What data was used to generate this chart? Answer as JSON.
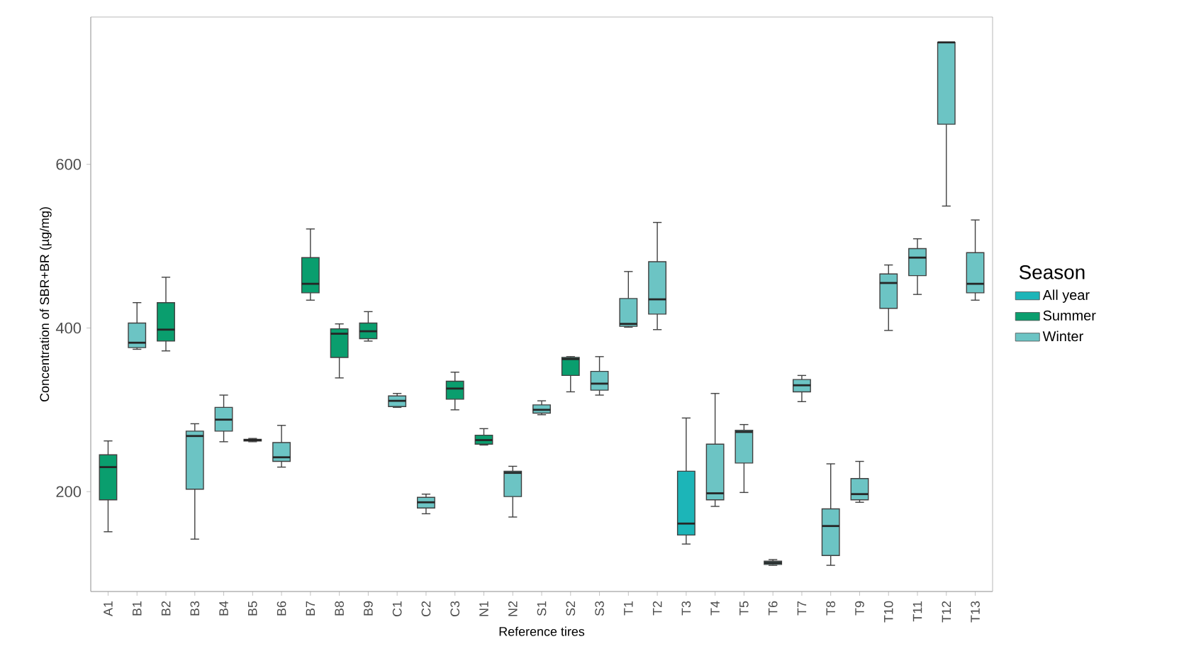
{
  "chart_data": {
    "type": "box",
    "xlabel": "Reference tires",
    "ylabel": "Concentration of SBR+BR (µg/mg)",
    "legend_title": "Season",
    "legend": "right",
    "categories": [
      "A1",
      "B1",
      "B2",
      "B3",
      "B4",
      "B5",
      "B6",
      "B7",
      "B8",
      "B9",
      "C1",
      "C2",
      "C3",
      "N1",
      "N2",
      "S1",
      "S2",
      "S3",
      "T1",
      "T2",
      "T3",
      "T4",
      "T5",
      "T6",
      "T7",
      "T8",
      "T9",
      "T10",
      "T11",
      "T12",
      "T13"
    ],
    "ylim": [
      78,
      780
    ],
    "yticks": [
      200,
      400,
      600
    ],
    "series": [
      {
        "name": "All year",
        "color": "#1cb5b8",
        "boxes": [
          null,
          null,
          null,
          null,
          null,
          null,
          null,
          null,
          null,
          null,
          null,
          null,
          null,
          null,
          null,
          null,
          null,
          null,
          null,
          null,
          {
            "low": 136,
            "q1": 147,
            "median": 161,
            "q3": 225,
            "high": 290
          },
          null,
          null,
          null,
          null,
          null,
          null,
          null,
          null,
          null,
          null
        ]
      },
      {
        "name": "Summer",
        "color": "#0a9e6e",
        "boxes": [
          {
            "low": 151,
            "q1": 190,
            "median": 230,
            "q3": 245,
            "high": 262
          },
          null,
          {
            "low": 372,
            "q1": 384,
            "median": 398,
            "q3": 431,
            "high": 462
          },
          null,
          null,
          {
            "low": 261,
            "q1": 262,
            "median": 263,
            "q3": 264,
            "high": 265
          },
          null,
          {
            "low": 434,
            "q1": 443,
            "median": 454,
            "q3": 486,
            "high": 521
          },
          {
            "low": 339,
            "q1": 364,
            "median": 393,
            "q3": 399,
            "high": 405
          },
          {
            "low": 384,
            "q1": 387,
            "median": 396,
            "q3": 406,
            "high": 420
          },
          null,
          null,
          {
            "low": 300,
            "q1": 313,
            "median": 326,
            "q3": 335,
            "high": 346
          },
          {
            "low": 257,
            "q1": 258,
            "median": 263,
            "q3": 269,
            "high": 277
          },
          null,
          null,
          {
            "low": 322,
            "q1": 342,
            "median": 362,
            "q3": 364,
            "high": 365
          },
          null,
          null,
          null,
          null,
          null,
          null,
          null,
          null,
          null,
          null,
          null,
          null,
          null,
          null
        ]
      },
      {
        "name": "Winter",
        "color": "#6cc4c4",
        "boxes": [
          null,
          {
            "low": 374,
            "q1": 376,
            "median": 382,
            "q3": 406,
            "high": 431
          },
          null,
          {
            "low": 142,
            "q1": 203,
            "median": 268,
            "q3": 274,
            "high": 283
          },
          {
            "low": 261,
            "q1": 274,
            "median": 288,
            "q3": 303,
            "high": 318
          },
          null,
          {
            "low": 230,
            "q1": 237,
            "median": 242,
            "q3": 260,
            "high": 281
          },
          null,
          null,
          null,
          {
            "low": 303,
            "q1": 304,
            "median": 311,
            "q3": 317,
            "high": 320
          },
          {
            "low": 173,
            "q1": 180,
            "median": 187,
            "q3": 193,
            "high": 197
          },
          null,
          null,
          {
            "low": 169,
            "q1": 194,
            "median": 223,
            "q3": 225,
            "high": 231
          },
          {
            "low": 294,
            "q1": 296,
            "median": 300,
            "q3": 306,
            "high": 311
          },
          null,
          {
            "low": 318,
            "q1": 324,
            "median": 332,
            "q3": 347,
            "high": 365
          },
          {
            "low": 401,
            "q1": 402,
            "median": 405,
            "q3": 436,
            "high": 469
          },
          {
            "low": 398,
            "q1": 417,
            "median": 435,
            "q3": 481,
            "high": 529
          },
          null,
          {
            "low": 182,
            "q1": 190,
            "median": 198,
            "q3": 258,
            "high": 320
          },
          {
            "low": 199,
            "q1": 235,
            "median": 273,
            "q3": 275,
            "high": 282
          },
          {
            "low": 110,
            "q1": 111,
            "median": 113,
            "q3": 115,
            "high": 117
          },
          {
            "low": 310,
            "q1": 322,
            "median": 330,
            "q3": 337,
            "high": 342
          },
          {
            "low": 110,
            "q1": 122,
            "median": 158,
            "q3": 179,
            "high": 234
          },
          {
            "low": 187,
            "q1": 190,
            "median": 197,
            "q3": 216,
            "high": 237
          },
          {
            "low": 397,
            "q1": 424,
            "median": 455,
            "q3": 466,
            "high": 477
          },
          {
            "low": 441,
            "q1": 464,
            "median": 486,
            "q3": 497,
            "high": 509
          },
          {
            "low": 549,
            "q1": 649,
            "median": 749,
            "q3": 749,
            "high": 749
          },
          {
            "low": 434,
            "q1": 443,
            "median": 454,
            "q3": 492,
            "high": 532
          }
        ]
      }
    ]
  }
}
